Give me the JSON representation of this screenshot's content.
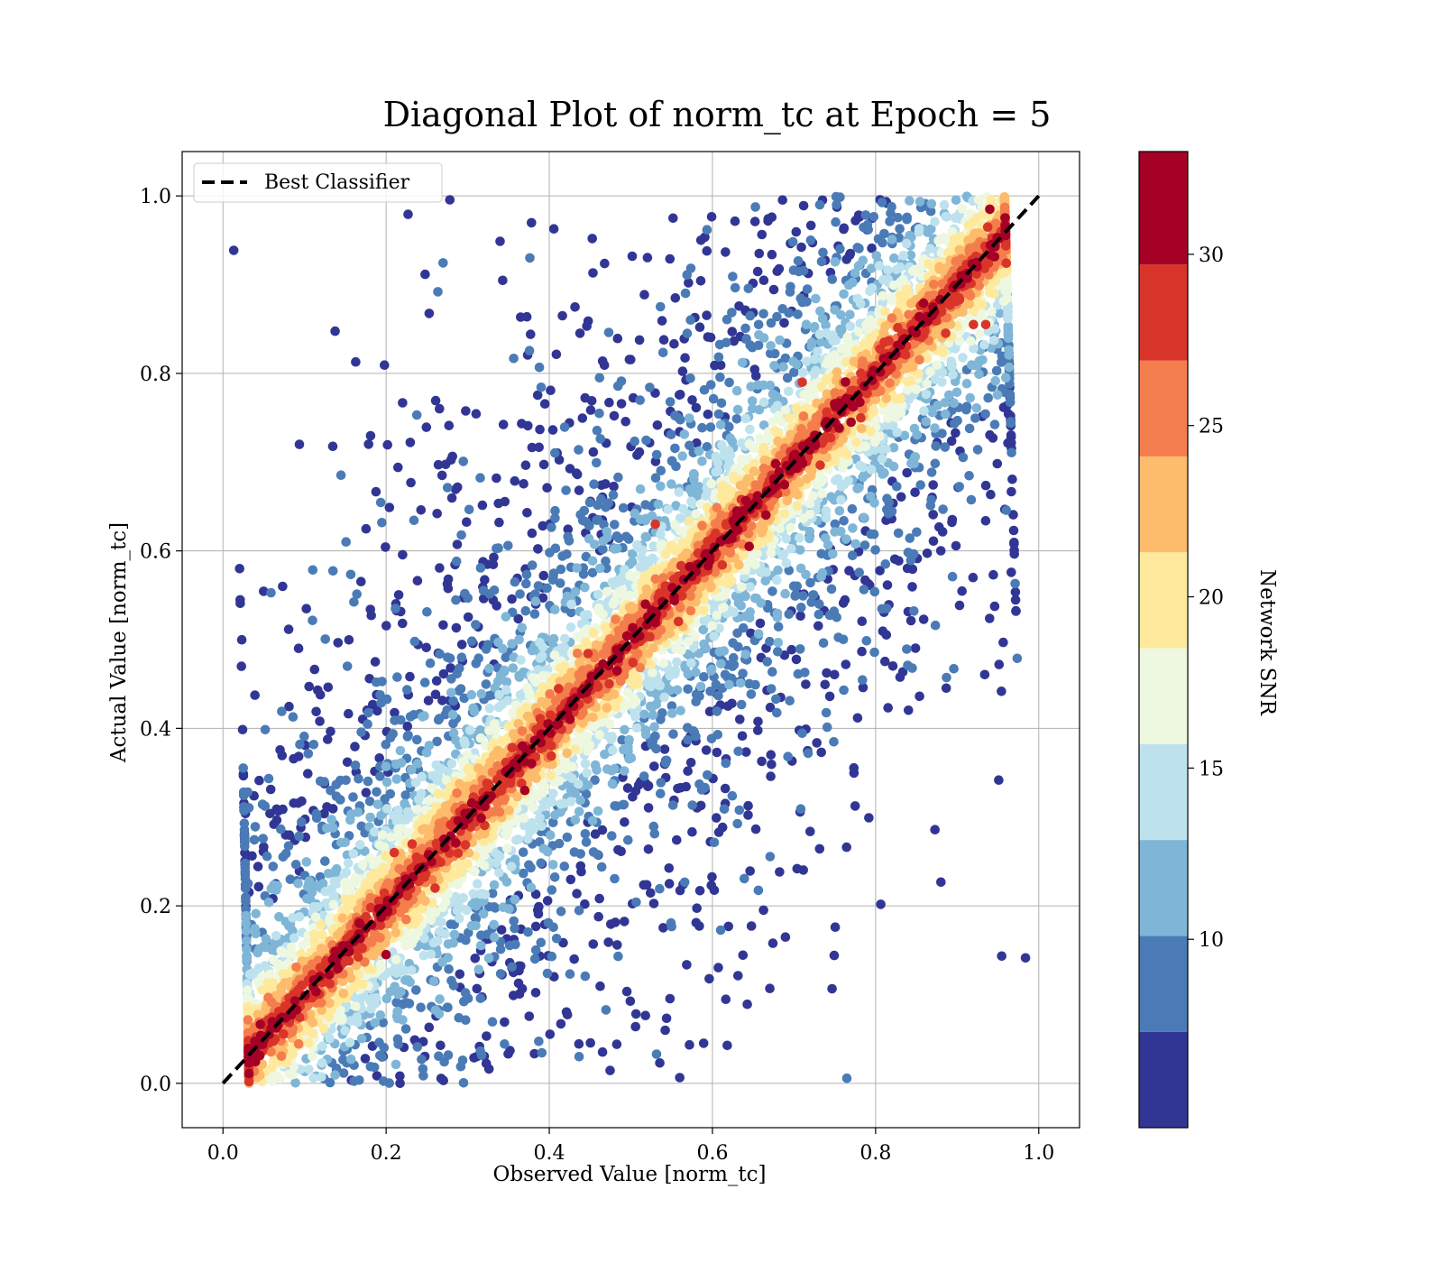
{
  "chart_data": {
    "type": "scatter",
    "title": "Diagonal Plot of norm_tc at Epoch = 5",
    "xlabel": "Observed Value [norm_tc]",
    "ylabel": "Actual Value [norm_tc]",
    "xlim": [
      -0.05,
      1.05
    ],
    "ylim": [
      -0.05,
      1.05
    ],
    "xticks": [
      0.0,
      0.2,
      0.4,
      0.6,
      0.8,
      1.0
    ],
    "yticks": [
      0.0,
      0.2,
      0.4,
      0.6,
      0.8,
      1.0
    ],
    "xtick_labels": [
      "0.0",
      "0.2",
      "0.4",
      "0.6",
      "0.8",
      "1.0"
    ],
    "ytick_labels": [
      "0.0",
      "0.2",
      "0.4",
      "0.6",
      "0.8",
      "1.0"
    ],
    "grid": true,
    "legend": {
      "placement": "upper-left",
      "entries": [
        "Best Classifier"
      ]
    },
    "reference_line": {
      "name": "Best Classifier",
      "style": "dashed",
      "color": "#000000",
      "x": [
        0.0,
        1.0
      ],
      "y": [
        0.0,
        1.0
      ]
    },
    "colorbar": {
      "label": "Network SNR",
      "range": [
        4.5,
        33
      ],
      "ticks": [
        10,
        15,
        20,
        25,
        30
      ],
      "tick_labels": [
        "10",
        "15",
        "20",
        "25",
        "30"
      ],
      "bins": [
        {
          "from": 4.5,
          "to": 7.3,
          "color": "#313695"
        },
        {
          "from": 7.3,
          "to": 10.1,
          "color": "#4a7bb6"
        },
        {
          "from": 10.1,
          "to": 12.9,
          "color": "#7fb6d7"
        },
        {
          "from": 12.9,
          "to": 15.7,
          "color": "#bde2ee"
        },
        {
          "from": 15.7,
          "to": 18.5,
          "color": "#eef7e0"
        },
        {
          "from": 18.5,
          "to": 21.3,
          "color": "#fee99d"
        },
        {
          "from": 21.3,
          "to": 24.1,
          "color": "#fdbb6c"
        },
        {
          "from": 24.1,
          "to": 26.9,
          "color": "#f47d4d"
        },
        {
          "from": 26.9,
          "to": 29.7,
          "color": "#d93429"
        },
        {
          "from": 29.7,
          "to": 33.0,
          "color": "#a50026"
        }
      ]
    },
    "scatter_distribution": {
      "description_values": "points clustered along y = x; SNR highest near diagonal, lowest far from it",
      "approx_point_count": 9000,
      "highlighted_points": [
        {
          "x": 0.37,
          "y": 0.33,
          "snr": 31
        },
        {
          "x": 0.63,
          "y": 0.645,
          "snr": 31
        },
        {
          "x": 0.645,
          "y": 0.605,
          "snr": 31
        },
        {
          "x": 0.77,
          "y": 0.745,
          "snr": 31
        },
        {
          "x": 0.94,
          "y": 0.985,
          "snr": 30
        },
        {
          "x": 0.92,
          "y": 0.855,
          "snr": 29
        },
        {
          "x": 0.935,
          "y": 0.855,
          "snr": 29
        },
        {
          "x": 0.2,
          "y": 0.145,
          "snr": 30
        },
        {
          "x": 0.26,
          "y": 0.22,
          "snr": 29
        },
        {
          "x": 0.53,
          "y": 0.63,
          "snr": 29
        },
        {
          "x": 0.21,
          "y": 0.26,
          "snr": 29
        },
        {
          "x": 0.71,
          "y": 0.79,
          "snr": 29
        }
      ]
    }
  }
}
